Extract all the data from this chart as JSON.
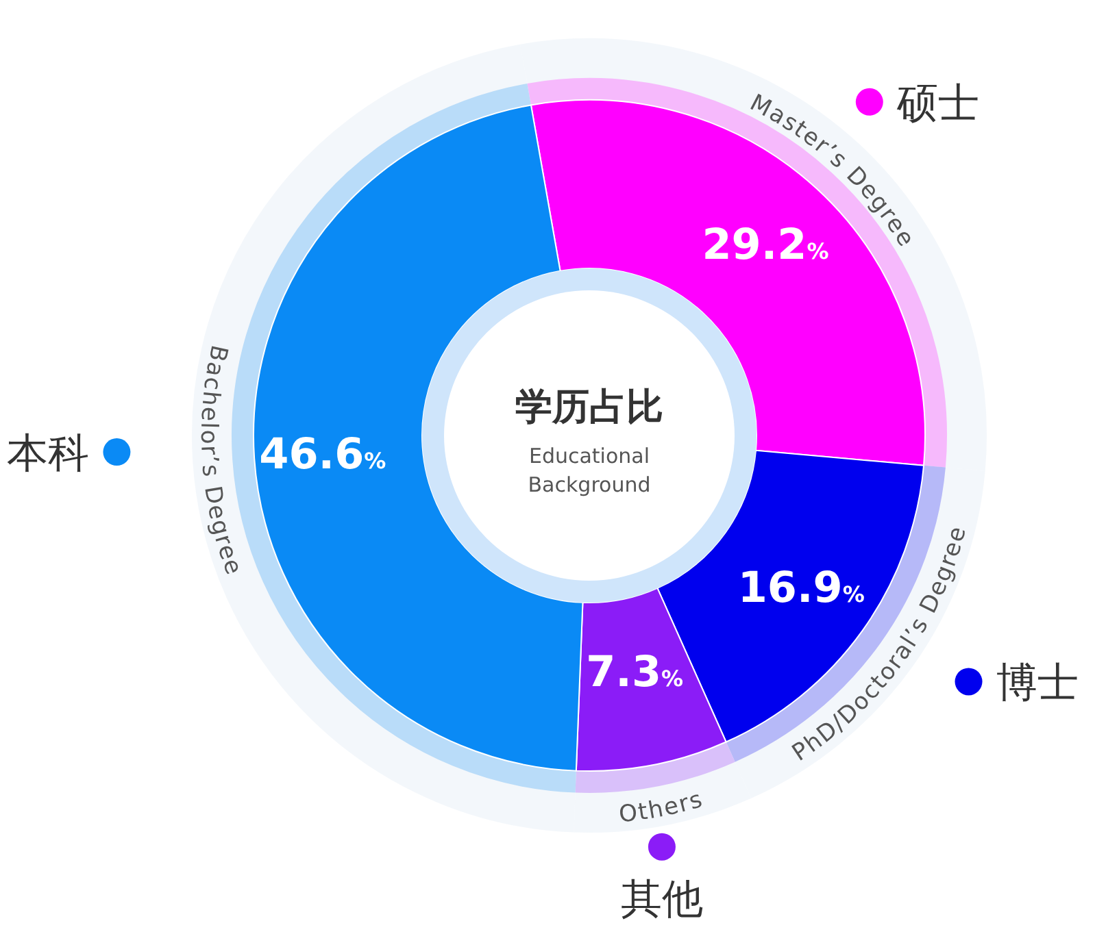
{
  "chart_data": {
    "type": "donut",
    "title": "学历占比",
    "subtitle": "Educational Background",
    "categories": [
      "本科",
      "硕士",
      "博士",
      "其他"
    ],
    "values": [
      46.6,
      29.2,
      16.9,
      7.3
    ],
    "colors": [
      "#0a8af5",
      "#ff00ff",
      "#0000ee",
      "#8b1cf7"
    ],
    "value_labels": [
      "46.6%",
      "29.2%",
      "16.9%",
      "7.3%"
    ],
    "annotations": [
      "Bachelor’s Degree",
      "Master’s Degree",
      "PhD/Doctoral’s Degree",
      "Others"
    ],
    "legend": "right"
  }
}
